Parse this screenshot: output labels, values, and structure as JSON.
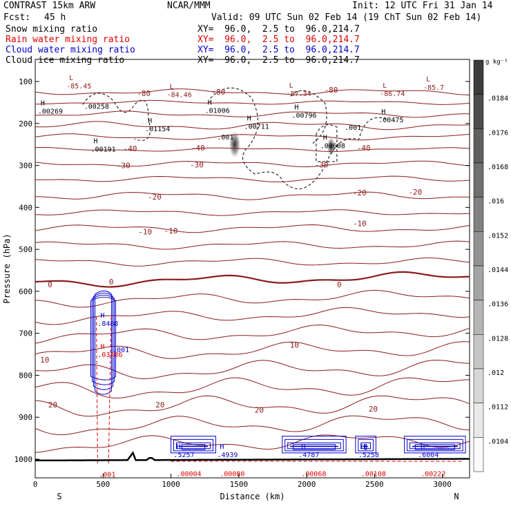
{
  "header": {
    "model": "CONTRAST 15km ARW",
    "org": "NCAR/MMM",
    "init": "Init: 12 UTC Fri 31 Jan 14",
    "fcst_label": "Fcst:",
    "fcst_value": "45 h",
    "valid": "Valid: 09 UTC Sun 02 Feb 14 (19 ChT Sun 02 Feb 14)"
  },
  "fields": [
    {
      "name": "Snow mixing ratio",
      "xy": "XY=  96.0,  2.5 to  96.0,214.7",
      "color": "#000000"
    },
    {
      "name": "Rain water mixing ratio",
      "xy": "XY=  96.0,  2.5 to  96.0,214.7",
      "color": "#dd0000"
    },
    {
      "name": "Cloud water mixing ratio",
      "xy": "XY=  96.0,  2.5 to  96.0,214.7",
      "color": "#0000cc"
    },
    {
      "name": "Cloud ice mixing ratio",
      "xy": "XY=  96.0,  2.5 to  96.0,214.7",
      "color": "#000000"
    }
  ],
  "chart_data": {
    "type": "contour_cross_section",
    "xlabel": "Distance (km)",
    "ylabel": "Pressure (hPa)",
    "xlim": [
      0,
      3200
    ],
    "ylim": [
      1050,
      70
    ],
    "x_ticks": [
      0,
      500,
      1000,
      1500,
      2000,
      2500,
      3000
    ],
    "y_ticks": [
      100,
      200,
      300,
      400,
      500,
      600,
      700,
      800,
      900,
      1000
    ],
    "end_labels": {
      "left": "S",
      "right": "N"
    },
    "colorbar": {
      "unit": "g kg⁻¹",
      "ticks": [
        ".0184",
        ".0176",
        ".0168",
        ".016",
        ".0152",
        ".0144",
        ".0136",
        ".0128",
        ".012",
        ".0112",
        ".0104"
      ]
    },
    "temperature_contours": {
      "color": "#8b1a1a",
      "levels": [
        -80,
        -40,
        -30,
        -20,
        -10,
        0,
        10,
        20
      ],
      "level_labels": [
        {
          "text": "-80",
          "x": 800,
          "y": 128
        },
        {
          "text": "-80",
          "x": 1350,
          "y": 125
        },
        {
          "text": "-80",
          "x": 2180,
          "y": 120
        },
        {
          "text": "-40",
          "x": 700,
          "y": 260
        },
        {
          "text": "-40",
          "x": 1200,
          "y": 258
        },
        {
          "text": "-40",
          "x": 2420,
          "y": 258
        },
        {
          "text": "-30",
          "x": 650,
          "y": 300
        },
        {
          "text": "-30",
          "x": 1190,
          "y": 298
        },
        {
          "text": "-30",
          "x": 2110,
          "y": 298
        },
        {
          "text": "-20",
          "x": 880,
          "y": 375
        },
        {
          "text": "-20",
          "x": 2390,
          "y": 365
        },
        {
          "text": "-20",
          "x": 2800,
          "y": 363
        },
        {
          "text": "-10",
          "x": 810,
          "y": 458
        },
        {
          "text": "-10",
          "x": 1000,
          "y": 455
        },
        {
          "text": "-10",
          "x": 2390,
          "y": 438
        },
        {
          "text": "0",
          "x": 110,
          "y": 584
        },
        {
          "text": "0",
          "x": 560,
          "y": 577
        },
        {
          "text": "0",
          "x": 2240,
          "y": 584
        },
        {
          "text": "10",
          "x": 70,
          "y": 763
        },
        {
          "text": "10",
          "x": 1910,
          "y": 728
        },
        {
          "text": "20",
          "x": 130,
          "y": 870
        },
        {
          "text": "20",
          "x": 920,
          "y": 870
        },
        {
          "text": "20",
          "x": 1650,
          "y": 882
        },
        {
          "text": "20",
          "x": 2490,
          "y": 880
        }
      ]
    },
    "extrema": [
      {
        "type": "L",
        "text": "-85.45",
        "x": 250,
        "y": 120
      },
      {
        "type": "L",
        "text": "-84.46",
        "x": 990,
        "y": 140
      },
      {
        "type": "L",
        "text": "-87.34",
        "x": 1870,
        "y": 138
      },
      {
        "type": "L",
        "text": "-86.74",
        "x": 2560,
        "y": 138
      },
      {
        "type": "L",
        "text": "-85.7",
        "x": 2880,
        "y": 123
      },
      {
        "type": "H",
        "text": ".00269",
        "x": 40,
        "y": 180
      },
      {
        "type": "H",
        "text": ".00191",
        "x": 430,
        "y": 270
      },
      {
        "type": "H",
        "text": ".01154",
        "x": 830,
        "y": 222
      },
      {
        "type": "H",
        "text": ".01006",
        "x": 1270,
        "y": 178
      },
      {
        "type": "H",
        "text": ".00711",
        "x": 1560,
        "y": 216
      },
      {
        "type": "H",
        "text": ".00796",
        "x": 1910,
        "y": 190
      },
      {
        "type": "H",
        "text": ".00608",
        "x": 2120,
        "y": 262
      },
      {
        "type": "H",
        "text": ".00475",
        "x": 2550,
        "y": 200
      },
      {
        "type": "H",
        "text": ".8488",
        "x": 480,
        "y": 686
      },
      {
        "type": "H",
        "text": ".03486",
        "x": 480,
        "y": 760
      },
      {
        "type": "H",
        "text": ".5257",
        "x": 1040,
        "y": 998
      },
      {
        "type": "H",
        "text": ".4939",
        "x": 1360,
        "y": 998
      },
      {
        "type": "H",
        "text": ".4787",
        "x": 1960,
        "y": 998
      },
      {
        "type": "H",
        "text": ".5258",
        "x": 2400,
        "y": 998
      },
      {
        "type": "H",
        "text": ".6004",
        "x": 2840,
        "y": 998
      }
    ],
    "other_labels": [
      {
        "text": ".00258",
        "x": 360,
        "y": 165,
        "color": "#000000"
      },
      {
        "text": ".001",
        "x": 1340,
        "y": 238,
        "color": "#000000"
      },
      {
        "text": ".001",
        "x": 2280,
        "y": 215,
        "color": "#000000"
      },
      {
        "text": ".001",
        "x": 570,
        "y": 745,
        "color": "#0000cc"
      },
      {
        "text": ".001",
        "x": 470,
        "y": 1042,
        "color": "#dd0000"
      },
      {
        "text": ".00004",
        "x": 1040,
        "y": 1040,
        "color": "#dd0000"
      },
      {
        "text": ".00080",
        "x": 1360,
        "y": 1040,
        "color": "#dd0000"
      },
      {
        "text": ".00068",
        "x": 1960,
        "y": 1040,
        "color": "#dd0000"
      },
      {
        "text": ".00108",
        "x": 2400,
        "y": 1040,
        "color": "#dd0000"
      },
      {
        "text": ".00222",
        "x": 2840,
        "y": 1040,
        "color": "#dd0000"
      }
    ]
  }
}
